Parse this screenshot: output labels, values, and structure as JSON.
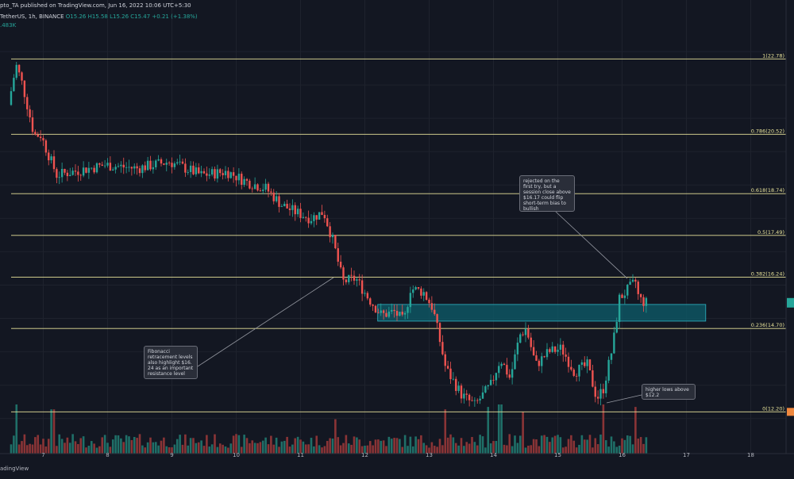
{
  "header": {
    "line1": "pto_TA published on TradingView.com, Jun 16, 2022 10:06 UTC+5:30",
    "line2_symbol": "TetherUS, 1h, BINANCE",
    "line2_ohlc": "O15.26  H15.58  L15.26  C15.47  +0.21 (+1.38%)",
    "line3": ".483K"
  },
  "footer": {
    "brand": "adingView"
  },
  "annotations": [
    {
      "id": "fib",
      "text": "Fibonacci\nretracement levels\nalso highlight $16.\n24 as an important\nresistance level"
    },
    {
      "id": "rejected",
      "text": "rejected on the\nfirst try, but a\nsession close above\n$16.17 could flip\nshort-term bias to\nbullish"
    },
    {
      "id": "higher",
      "text": "higher lows above\n$12.2"
    }
  ],
  "colors": {
    "background": "#131722",
    "up": "#26a69a",
    "down": "#ef5350",
    "fib_line": "#e8e39a",
    "zone": "#0e5e6b",
    "zone_border": "#2fb6c6",
    "axis_text": "#b2b5be"
  },
  "chart_data": {
    "type": "candlestick",
    "title": "",
    "xlabel": "",
    "ylabel": "",
    "x_ticks": [
      "7",
      "8",
      "9",
      "10",
      "11",
      "12",
      "13",
      "14",
      "15",
      "16",
      "17",
      "18"
    ],
    "y_range": [
      11.4,
      23.5
    ],
    "fib_levels": [
      {
        "ratio": "1",
        "price": 22.78,
        "label": "1(22.78)"
      },
      {
        "ratio": "0.786",
        "price": 20.52,
        "label": "0.786(20.52)"
      },
      {
        "ratio": "0.618",
        "price": 18.74,
        "label": "0.618(18.74)"
      },
      {
        "ratio": "0.5",
        "price": 17.49,
        "label": "0.5(17.49)"
      },
      {
        "ratio": "0.382",
        "price": 16.24,
        "label": "0.382(16.24)"
      },
      {
        "ratio": "0.236",
        "price": 14.7,
        "label": "0.236(14.70)"
      },
      {
        "ratio": "0",
        "price": 12.2,
        "label": "0(12.20)"
      }
    ],
    "zone": {
      "top": 15.42,
      "bottom": 14.92,
      "start_day": 12.2,
      "end_day": 17.3
    },
    "last_price": 15.47,
    "price_path_days": [
      6.5,
      6.62,
      6.72,
      6.9,
      7.0,
      7.25,
      7.5,
      8.0,
      8.5,
      9.0,
      9.5,
      9.9,
      10.2,
      10.5,
      10.75,
      10.95,
      11.2,
      11.4,
      11.55,
      11.7,
      11.9,
      12.1,
      12.3,
      12.5,
      12.65,
      12.75,
      12.95,
      13.1,
      13.3,
      13.55,
      13.75,
      14.0,
      14.15,
      14.3,
      14.45,
      14.55,
      14.7,
      14.9,
      15.1,
      15.3,
      15.5,
      15.65,
      15.75,
      15.9,
      16.0,
      16.15,
      16.25,
      16.3,
      16.4
    ],
    "price_path_values": [
      21.4,
      22.6,
      22.0,
      20.5,
      20.5,
      19.3,
      19.4,
      19.6,
      19.5,
      19.7,
      19.3,
      19.4,
      19.1,
      18.9,
      18.4,
      18.2,
      18.0,
      18.2,
      17.3,
      16.1,
      16.2,
      15.6,
      15.1,
      15.2,
      14.9,
      15.9,
      15.8,
      15.3,
      13.5,
      12.7,
      12.4,
      13.0,
      13.8,
      13.2,
      14.5,
      14.7,
      13.6,
      14.0,
      14.1,
      13.4,
      13.6,
      12.6,
      12.9,
      14.2,
      15.6,
      15.9,
      16.1,
      15.6,
      15.47
    ],
    "volume": {
      "spikes": [
        {
          "day": 6.6,
          "value": 1.0
        },
        {
          "day": 7.15,
          "value": 0.9
        },
        {
          "day": 11.55,
          "value": 0.7
        },
        {
          "day": 13.25,
          "value": 0.9
        },
        {
          "day": 13.9,
          "value": 0.95
        },
        {
          "day": 14.1,
          "value": 1.0
        },
        {
          "day": 14.45,
          "value": 0.85
        },
        {
          "day": 15.7,
          "value": 1.0
        },
        {
          "day": 16.2,
          "value": 0.95
        }
      ]
    }
  }
}
